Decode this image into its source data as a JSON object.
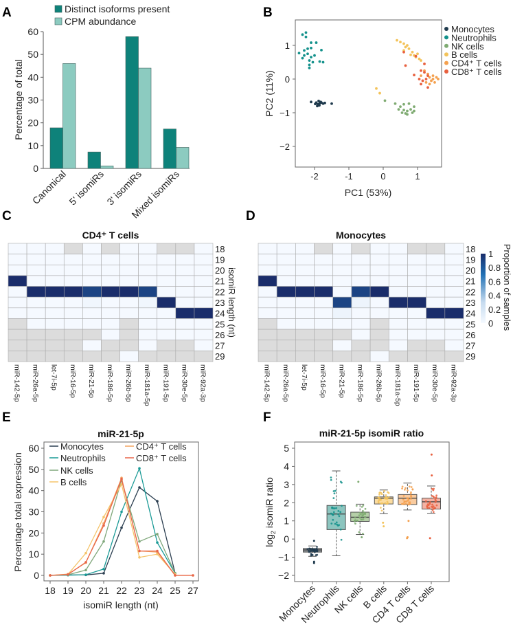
{
  "panel_labels": [
    "A",
    "B",
    "C",
    "D",
    "E",
    "F"
  ],
  "chart_data": [
    {
      "panel": "A",
      "type": "bar",
      "categories": [
        "Canonical",
        "5' isomiRs",
        "3' isomiRs",
        "Mixed isomiRs"
      ],
      "series": [
        {
          "name": "Distinct isoforms present",
          "values": [
            17.8,
            7.2,
            57.8,
            17.3
          ],
          "color": "#0e827a"
        },
        {
          "name": "CPM abundance",
          "values": [
            46,
            1.1,
            44,
            9.2
          ],
          "color": "#8ccbc0"
        }
      ],
      "ylabel": "Percentage of total",
      "ylim": [
        0,
        60
      ],
      "yticks": [
        "0",
        "10",
        "20",
        "30",
        "40",
        "50",
        "60"
      ],
      "legend": "top"
    },
    {
      "panel": "B",
      "type": "scatter",
      "xlabel": "PC1 (53%)",
      "ylabel": "PC2 (11%)",
      "xlim": [
        -2.56,
        1.7
      ],
      "ylim": [
        -2.6,
        1.76
      ],
      "xticks": [
        "-2",
        "-1",
        "0",
        "1"
      ],
      "yticks": [
        "1",
        "0",
        "−1",
        "−2"
      ],
      "legend": "right",
      "series": [
        {
          "name": "Monocytes",
          "color": "#1f3a4d",
          "points": [
            [
              -2.1,
              -0.68
            ],
            [
              -1.95,
              -0.7
            ],
            [
              -1.9,
              -0.75
            ],
            [
              -1.85,
              -0.72
            ],
            [
              -1.88,
              -0.65
            ],
            [
              -1.8,
              -0.7
            ],
            [
              -1.92,
              -0.8
            ],
            [
              -1.75,
              -0.73
            ],
            [
              -1.5,
              -0.73
            ],
            [
              -1.98,
              -0.74
            ],
            [
              -1.86,
              -0.78
            ],
            [
              -1.82,
              -0.68
            ],
            [
              -1.7,
              -0.71
            ]
          ]
        },
        {
          "name": "Neutrophils",
          "color": "#13918b",
          "points": [
            [
              -2.25,
              1.38
            ],
            [
              -2.35,
              1.32
            ],
            [
              -2.25,
              1.25
            ],
            [
              -2.1,
              1.08
            ],
            [
              -1.95,
              1.08
            ],
            [
              -2.2,
              0.9
            ],
            [
              -2.1,
              0.92
            ],
            [
              -2.3,
              0.85
            ],
            [
              -1.8,
              0.86
            ],
            [
              -2.45,
              0.77
            ],
            [
              -2.2,
              0.75
            ],
            [
              -2.0,
              0.7
            ],
            [
              -2.35,
              0.62
            ],
            [
              -2.15,
              0.55
            ],
            [
              -2.05,
              0.5
            ],
            [
              -1.85,
              0.52
            ],
            [
              -1.75,
              0.5
            ],
            [
              -2.15,
              0.42
            ],
            [
              -2.15,
              0.33
            ],
            [
              -2.3,
              0.7
            ],
            [
              -2.1,
              0.65
            ]
          ]
        },
        {
          "name": "NK cells",
          "color": "#7fab72",
          "points": [
            [
              0.35,
              -0.73
            ],
            [
              0.5,
              -0.82
            ],
            [
              0.6,
              -0.75
            ],
            [
              0.75,
              -0.73
            ],
            [
              0.9,
              -0.82
            ],
            [
              0.45,
              -0.9
            ],
            [
              0.6,
              -0.92
            ],
            [
              0.7,
              -0.95
            ],
            [
              0.8,
              -0.9
            ],
            [
              0.9,
              -0.95
            ],
            [
              0.55,
              -1.0
            ],
            [
              0.7,
              -1.05
            ],
            [
              0.65,
              -1.02
            ],
            [
              0.05,
              -0.64
            ],
            [
              0.85,
              -1.0
            ]
          ]
        },
        {
          "name": "B cells",
          "color": "#f3c35a",
          "points": [
            [
              0.4,
              1.15
            ],
            [
              0.5,
              1.1
            ],
            [
              0.6,
              1.05
            ],
            [
              0.65,
              0.95
            ],
            [
              0.6,
              0.85
            ],
            [
              0.75,
              0.9
            ],
            [
              0.85,
              0.8
            ],
            [
              0.9,
              0.7
            ],
            [
              1.0,
              0.75
            ],
            [
              0.95,
              0.65
            ],
            [
              1.05,
              0.6
            ],
            [
              0.7,
              1.0
            ],
            [
              0.8,
              0.72
            ],
            [
              1.1,
              0.55
            ],
            [
              -0.2,
              -0.28
            ],
            [
              -0.1,
              -0.42
            ]
          ]
        },
        {
          "name": "CD4⁺ T cells",
          "color": "#f4a04e",
          "points": [
            [
              1.2,
              0.25
            ],
            [
              1.3,
              0.15
            ],
            [
              1.35,
              0.05
            ],
            [
              1.45,
              0.1
            ],
            [
              1.55,
              0.05
            ],
            [
              1.4,
              -0.05
            ],
            [
              1.25,
              -0.1
            ],
            [
              1.5,
              -0.1
            ],
            [
              1.35,
              -0.15
            ],
            [
              1.6,
              0.0
            ],
            [
              1.1,
              0.1
            ],
            [
              1.45,
              0.0
            ]
          ]
        },
        {
          "name": "CD8⁺ T cells",
          "color": "#e8603f",
          "points": [
            [
              0.6,
              0.8
            ],
            [
              0.65,
              0.4
            ],
            [
              0.95,
              0.68
            ],
            [
              1.1,
              0.25
            ],
            [
              1.2,
              0.2
            ],
            [
              0.9,
              0.12
            ],
            [
              1.15,
              -0.05
            ],
            [
              1.05,
              0.0
            ],
            [
              1.25,
              0.0
            ],
            [
              1.3,
              -0.25
            ],
            [
              1.2,
              0.45
            ],
            [
              1.1,
              -0.15
            ],
            [
              1.3,
              0.1
            ]
          ]
        }
      ]
    },
    {
      "panel": "C",
      "type": "heatmap",
      "title": "CD4⁺ T cells",
      "columns": [
        "miR-142-5p",
        "miR-26a-5p",
        "let-7i-5p",
        "miR-16-5p",
        "miR-21-5p",
        "miR-186-5p",
        "miR-26b-5p",
        "miR-181a-5p",
        "miR-191-5p",
        "miR-30e-5p",
        "miR-92a-3p"
      ],
      "rows": [
        "18",
        "19",
        "20",
        "21",
        "22",
        "23",
        "24",
        "25",
        "26",
        "27",
        "29"
      ],
      "ylabel": "isomiR length (nt)",
      "na_color": "#dcdcdc",
      "values": [
        [
          0,
          0,
          0,
          null,
          0,
          null,
          0,
          0,
          null,
          null,
          0
        ],
        [
          0,
          0,
          0,
          0,
          0,
          0,
          0,
          0,
          0,
          0,
          0
        ],
        [
          0,
          0,
          0,
          0,
          0,
          0,
          0,
          0,
          0,
          0,
          0
        ],
        [
          1,
          0,
          0,
          0,
          0,
          0,
          0,
          0,
          0,
          0,
          0
        ],
        [
          0,
          1,
          1,
          1,
          0.9,
          1,
          1,
          0.9,
          0,
          0,
          0
        ],
        [
          0,
          0,
          0,
          0,
          0.03,
          0,
          0,
          0.03,
          1,
          0,
          0
        ],
        [
          0,
          0,
          0,
          0,
          0,
          0,
          0,
          0,
          0,
          1,
          1
        ],
        [
          null,
          0,
          0,
          0,
          0,
          0,
          null,
          0,
          0,
          0,
          0
        ],
        [
          null,
          null,
          null,
          null,
          null,
          0,
          null,
          0,
          0,
          0,
          0
        ],
        [
          null,
          null,
          null,
          null,
          0,
          null,
          null,
          0,
          null,
          null,
          0
        ],
        [
          null,
          null,
          null,
          null,
          null,
          null,
          0,
          null,
          null,
          null,
          null
        ]
      ]
    },
    {
      "panel": "D",
      "type": "heatmap",
      "title": "Monocytes",
      "columns": [
        "miR-142-5p",
        "miR-26a-5p",
        "let-7i-5p",
        "miR-16-5p",
        "miR-21-5p",
        "miR-186-5p",
        "miR-26b-5p",
        "miR-181a-5p",
        "miR-191-5p",
        "miR-30e-5p",
        "miR-92a-3p"
      ],
      "rows": [
        "18",
        "19",
        "20",
        "21",
        "22",
        "23",
        "24",
        "25",
        "26",
        "27",
        "29"
      ],
      "na_color": "#dcdcdc",
      "colorbar": {
        "label": "Proportion of samples",
        "ticks": [
          "0",
          "0.2",
          "0.4",
          "0.6",
          "0.8",
          "1"
        ],
        "range": [
          0,
          1
        ]
      },
      "values": [
        [
          0,
          0,
          0,
          null,
          0,
          null,
          0,
          0,
          null,
          null,
          0
        ],
        [
          0,
          0,
          0,
          0,
          0,
          0,
          0,
          0,
          0,
          0,
          0
        ],
        [
          0,
          0,
          0,
          0,
          0,
          0,
          0,
          0,
          0,
          0,
          0
        ],
        [
          1,
          0,
          0,
          0,
          0,
          0,
          0,
          0,
          0,
          0,
          0
        ],
        [
          0,
          1,
          1,
          1,
          0,
          0.9,
          1,
          0,
          0,
          0,
          0
        ],
        [
          0,
          0,
          0,
          0,
          0.9,
          0.05,
          0,
          1,
          1,
          0,
          0
        ],
        [
          0,
          0,
          0,
          0,
          0.05,
          0,
          0,
          0,
          0,
          1,
          1
        ],
        [
          null,
          0,
          0,
          0,
          0,
          0,
          null,
          0,
          0,
          0,
          0
        ],
        [
          null,
          null,
          null,
          null,
          null,
          0,
          null,
          0,
          0,
          0,
          0
        ],
        [
          null,
          null,
          null,
          null,
          0,
          null,
          null,
          0,
          null,
          null,
          0
        ],
        [
          null,
          null,
          null,
          null,
          null,
          null,
          0,
          null,
          null,
          null,
          null
        ]
      ]
    },
    {
      "panel": "E",
      "type": "line",
      "title": "miR-21-5p",
      "xlabel": "isomiR length (nt)",
      "ylabel": "Percentage total expression",
      "x": [
        "18",
        "19",
        "20",
        "21",
        "22",
        "23",
        "24",
        "25",
        "27"
      ],
      "ylim": [
        0,
        60
      ],
      "yticks": [
        "0",
        "10",
        "20",
        "30",
        "40",
        "50",
        "60"
      ],
      "legend": "top",
      "series": [
        {
          "name": "Monocytes",
          "color": "#2b3e50",
          "values": [
            0,
            0.2,
            0.2,
            1,
            22.5,
            41.5,
            35,
            1,
            null
          ]
        },
        {
          "name": "Neutrophils",
          "color": "#1a9a96",
          "values": [
            0,
            0.1,
            0.3,
            3,
            30,
            50.5,
            15.5,
            1,
            null
          ]
        },
        {
          "name": "NK cells",
          "color": "#7fa77a",
          "values": [
            0,
            0.3,
            2.5,
            16,
            45,
            16,
            19.5,
            1,
            null
          ]
        },
        {
          "name": "B cells",
          "color": "#f5c46a",
          "values": [
            0,
            0.5,
            10.5,
            27.5,
            43,
            8.5,
            10,
            0.5,
            null
          ]
        },
        {
          "name": "CD4⁺ T cells",
          "color": "#f4a460",
          "values": [
            0,
            0.6,
            6,
            24.5,
            46,
            11.5,
            11,
            0,
            0
          ]
        },
        {
          "name": "CD8⁺ T cells",
          "color": "#e8664a",
          "values": [
            0,
            0.4,
            6.2,
            23.5,
            45.5,
            11.5,
            11.5,
            0,
            0
          ]
        }
      ]
    },
    {
      "panel": "F",
      "type": "box",
      "title": "miR-21-5p isomiR ratio",
      "ylabel_prefix": "log",
      "ylabel_sub": "2",
      "ylabel_suffix": " isomiR ratio",
      "ylim": [
        -2.3,
        5.2
      ],
      "yticks": [
        "−2",
        "−1",
        "0",
        "1",
        "2",
        "3",
        "4",
        "5"
      ],
      "categories": [
        "Monocytes",
        "Neutrophils",
        "NK cells",
        "B cells",
        "CD4 T cells",
        "CD8 T cells"
      ],
      "boxes": [
        {
          "q1": -0.72,
          "median": -0.6,
          "q3": -0.52,
          "whisker_low": -0.95,
          "whisker_high": -0.38,
          "outliers": [
            -0.1,
            -1.25,
            -1.32
          ],
          "fill": "#8a8f93",
          "point_color": "#1f3a4d"
        },
        {
          "q1": 0.52,
          "median": 1.38,
          "q3": 1.85,
          "whisker_low": -0.92,
          "whisker_high": 3.75,
          "outliers": [],
          "fill": "#8cc5bf",
          "point_color": "#13918b"
        },
        {
          "q1": 0.97,
          "median": 1.2,
          "q3": 1.48,
          "whisker_low": 0.25,
          "whisker_high": 1.92,
          "outliers": [
            3.15,
            0.1
          ],
          "fill": "#b5cfa8",
          "point_color": "#7fab72"
        },
        {
          "q1": 1.93,
          "median": 2.25,
          "q3": 2.32,
          "whisker_low": 1.4,
          "whisker_high": 2.7,
          "outliers": [
            0.9,
            0.7
          ],
          "fill": "#fbdca0",
          "point_color": "#f3c35a"
        },
        {
          "q1": 1.9,
          "median": 2.25,
          "q3": 2.45,
          "whisker_low": 1.6,
          "whisker_high": 3.08,
          "outliers": [
            1.0,
            0.1,
            0.05
          ],
          "fill": "#f9cb9f",
          "point_color": "#f4a04e"
        },
        {
          "q1": 1.65,
          "median": 2.05,
          "q3": 2.25,
          "whisker_low": 1.42,
          "whisker_high": 2.92,
          "outliers": [
            4.65,
            3.5,
            0.05
          ],
          "fill": "#f4b2a3",
          "point_color": "#e8603f"
        }
      ]
    }
  ]
}
